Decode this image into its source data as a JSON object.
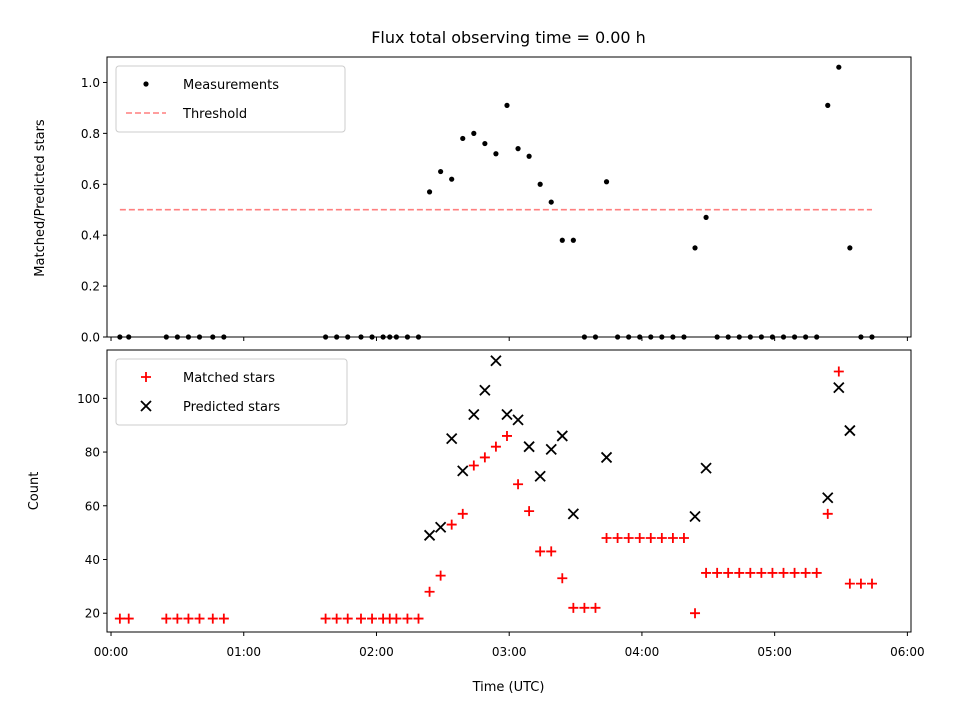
{
  "chart_data": {
    "title": "Flux total observing time = 0.00 h",
    "xlabel": "Time (UTC)",
    "xlim": [
      "00:00",
      "06:00"
    ],
    "x_ticks": [
      "00:00",
      "01:00",
      "02:00",
      "03:00",
      "04:00",
      "05:00",
      "06:00"
    ],
    "times": [
      "00:04",
      "00:08",
      "00:25",
      "00:30",
      "00:35",
      "00:40",
      "00:46",
      "00:51",
      "01:37",
      "01:42",
      "01:47",
      "01:53",
      "01:58",
      "02:03",
      "02:06",
      "02:09",
      "02:14",
      "02:19",
      "02:24",
      "02:29",
      "02:34",
      "02:39",
      "02:44",
      "02:49",
      "02:54",
      "02:59",
      "03:04",
      "03:09",
      "03:14",
      "03:19",
      "03:24",
      "03:29",
      "03:34",
      "03:39",
      "03:44",
      "03:49",
      "03:54",
      "03:59",
      "04:04",
      "04:09",
      "04:14",
      "04:19",
      "04:24",
      "04:29",
      "04:34",
      "04:39",
      "04:44",
      "04:49",
      "04:54",
      "04:59",
      "05:04",
      "05:09",
      "05:14",
      "05:19",
      "05:24",
      "05:29",
      "05:34",
      "05:39",
      "05:44"
    ],
    "panels": [
      {
        "type": "scatter",
        "ylabel": "Matched/Predicted stars",
        "ylim": [
          0,
          1.1
        ],
        "y_ticks": [
          "0.0",
          "0.2",
          "0.4",
          "0.6",
          "0.8",
          "1.0"
        ],
        "legend_position": "top-left",
        "series": [
          {
            "name": "Measurements",
            "marker": "dot",
            "color": "#000000",
            "values": [
              0,
              0,
              0,
              0,
              0,
              0,
              0,
              0,
              0,
              0,
              0,
              0,
              0,
              0,
              0,
              0,
              0,
              0,
              0.57,
              0.65,
              0.62,
              0.78,
              0.8,
              0.76,
              0.72,
              0.91,
              0.74,
              0.71,
              0.6,
              0.53,
              0.38,
              0.38,
              0,
              0,
              0.61,
              0,
              0,
              0,
              0,
              0,
              0,
              0,
              0.35,
              0.47,
              0,
              0,
              0,
              0,
              0,
              0,
              0,
              0,
              0,
              0,
              0.91,
              1.06,
              0.35,
              0,
              0
            ]
          }
        ],
        "lines": [
          {
            "name": "Threshold",
            "style": "dashed",
            "color": "#ff7f7f",
            "y": 0.5,
            "x_range": [
              "00:04",
              "05:44"
            ]
          }
        ]
      },
      {
        "type": "scatter",
        "ylabel": "Count",
        "ylim": [
          13,
          118
        ],
        "y_ticks": [
          "20",
          "40",
          "60",
          "80",
          "100"
        ],
        "legend_position": "top-left",
        "series": [
          {
            "name": "Matched stars",
            "marker": "plus",
            "color": "#ff0000",
            "values": [
              18,
              18,
              18,
              18,
              18,
              18,
              18,
              18,
              18,
              18,
              18,
              18,
              18,
              18,
              18,
              18,
              18,
              18,
              28,
              34,
              53,
              57,
              75,
              78,
              82,
              86,
              68,
              58,
              43,
              43,
              33,
              22,
              22,
              22,
              48,
              48,
              48,
              48,
              48,
              48,
              48,
              48,
              20,
              35,
              35,
              35,
              35,
              35,
              35,
              35,
              35,
              35,
              35,
              35,
              57,
              110,
              31,
              31,
              31
            ]
          },
          {
            "name": "Predicted stars",
            "marker": "x",
            "color": "#000000",
            "values": [
              null,
              null,
              null,
              null,
              null,
              null,
              null,
              null,
              null,
              null,
              null,
              null,
              null,
              null,
              null,
              null,
              null,
              null,
              49,
              52,
              85,
              73,
              94,
              103,
              114,
              94,
              92,
              82,
              71,
              81,
              86,
              57,
              null,
              null,
              78,
              null,
              null,
              null,
              null,
              null,
              null,
              null,
              56,
              74,
              null,
              null,
              null,
              null,
              null,
              null,
              null,
              null,
              null,
              null,
              63,
              104,
              88,
              null,
              null
            ]
          }
        ]
      }
    ]
  }
}
